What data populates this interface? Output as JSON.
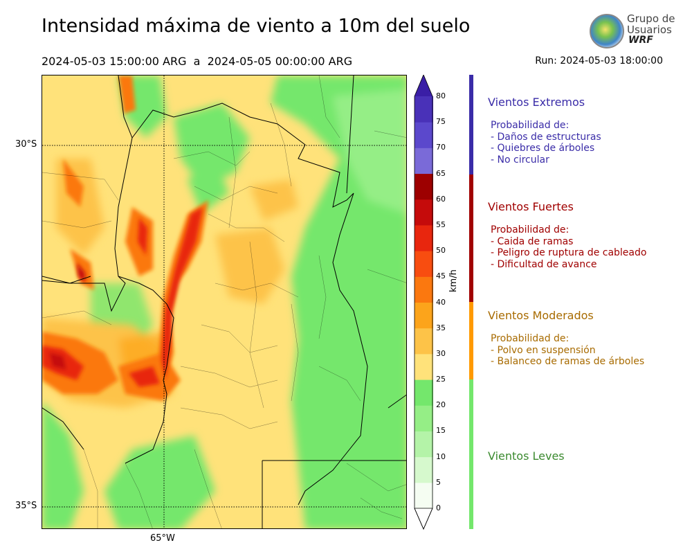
{
  "header": {
    "title": "Intensidad máxima de viento a 10m del suelo",
    "period": "2024-05-03 15:00:00 ARG  a  2024-05-05 00:00:00 ARG",
    "run": "Run: 2024-05-03 18:00:00"
  },
  "logo": {
    "line1": "Grupo de",
    "line2": "Usuarios",
    "line3": "WRF"
  },
  "map": {
    "lat_labels": [
      "30°S",
      "35°S"
    ],
    "lon_labels": [
      "65°W"
    ]
  },
  "colorbar": {
    "unit": "km/h",
    "ticks": [
      "0",
      "5",
      "10",
      "15",
      "20",
      "25",
      "30",
      "35",
      "40",
      "45",
      "50",
      "55",
      "60",
      "65",
      "70",
      "75",
      "80"
    ],
    "colors": [
      "#f5fdf2",
      "#d6f9cd",
      "#b4f3a8",
      "#95ee86",
      "#74e76c",
      "#ffe27a",
      "#fdc348",
      "#fca41b",
      "#fb780f",
      "#f84d10",
      "#e8260e",
      "#c50b0b",
      "#9d0000",
      "#7a6ad8",
      "#5b48cc",
      "#4931b8",
      "#3a1ea6"
    ]
  },
  "categories": [
    {
      "title": "Vientos Extremos",
      "desc_header": "Probabilidad de:",
      "items": [
        "- Daños de estructuras",
        "- Quiebres de árboles",
        "- No circular"
      ],
      "color": "#3a2ca8"
    },
    {
      "title": "Vientos Fuertes",
      "desc_header": "Probabilidad de:",
      "items": [
        "- Caida de ramas",
        "- Peligro de ruptura de cableado",
        "- Dificultad de avance"
      ],
      "color": "#a00000"
    },
    {
      "title": "Vientos Moderados",
      "desc_header": "Probabilidad de:",
      "items": [
        "- Polvo en suspensión",
        "- Balanceo de ramas de árboles"
      ],
      "color": "#a86b00"
    },
    {
      "title": "Vientos Leves",
      "desc_header": "",
      "items": [],
      "color": "#3b8a2f"
    }
  ],
  "category_bar_colors": [
    "#3a2ca8",
    "#a00000",
    "#ff9a00",
    "#74e76c"
  ]
}
